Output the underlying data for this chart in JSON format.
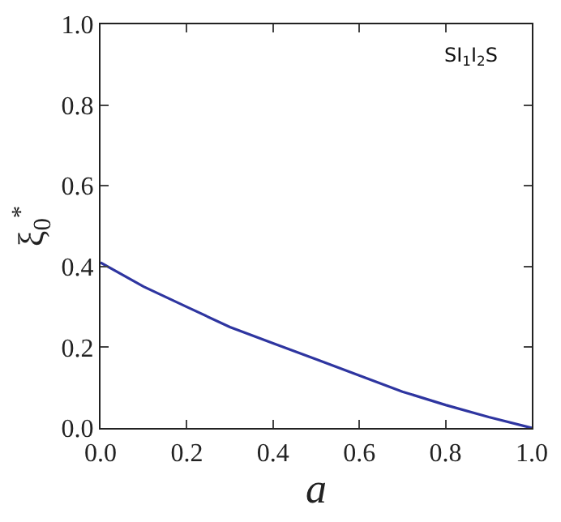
{
  "chart_data": {
    "type": "line",
    "xlabel": "a",
    "ylabel": "ξ$_{0}$$^{*}$",
    "annotations": [
      "SI$_{1}$I$_{2}$S"
    ],
    "x": [
      0,
      0.1,
      0.2,
      0.3,
      0.4,
      0.5,
      0.6,
      0.7,
      0.8,
      0.9,
      1.0
    ],
    "series": [
      {
        "color": "#2e35a0",
        "values": [
          0.41,
          0.35,
          0.3,
          0.25,
          0.21,
          0.17,
          0.13,
          0.09,
          0.057,
          0.027,
          0
        ]
      }
    ],
    "xlim": [
      0,
      1
    ],
    "ylim": [
      0,
      1
    ],
    "xticks": [
      {
        "value": 0,
        "label": "0.0"
      },
      {
        "value": 0.2,
        "label": "0.2"
      },
      {
        "value": 0.4,
        "label": "0.4"
      },
      {
        "value": 0.6,
        "label": "0.6"
      },
      {
        "value": 0.8,
        "label": "0.8"
      },
      {
        "value": 1,
        "label": "1.0"
      }
    ],
    "yticks": [
      {
        "value": 0,
        "label": "0.0"
      },
      {
        "value": 0.2,
        "label": "0.2"
      },
      {
        "value": 0.4,
        "label": "0.4"
      },
      {
        "value": 0.6,
        "label": "0.6"
      },
      {
        "value": 0.8,
        "label": "0.8"
      },
      {
        "value": 1,
        "label": "1.0"
      }
    ],
    "marker": "none",
    "line_style": "solid"
  }
}
